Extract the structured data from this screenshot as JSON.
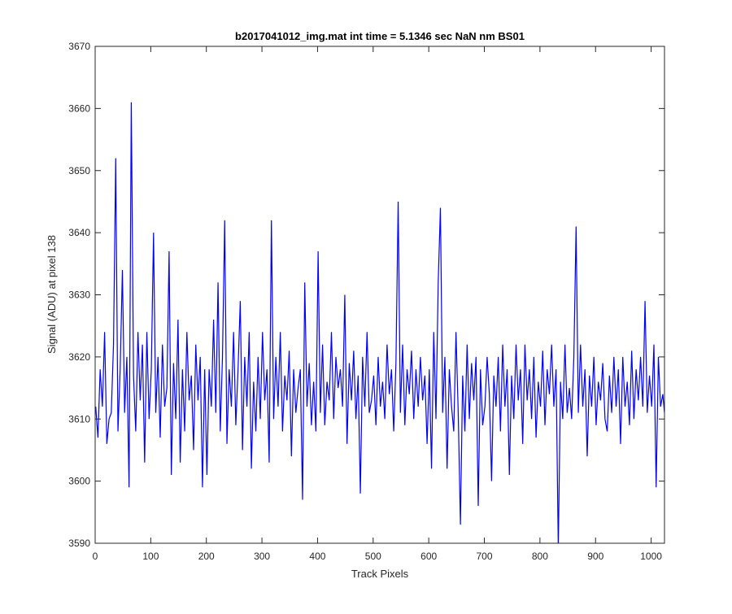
{
  "chart_data": {
    "type": "line",
    "title": "b2017041012_img.mat int time = 5.1346 sec  NaN nm BS01",
    "xlabel": "Track Pixels",
    "ylabel": "Signal (ADU) at pixel 138",
    "xlim": [
      0,
      1024
    ],
    "ylim": [
      3590,
      3670
    ],
    "xticks": [
      "0",
      "100",
      "200",
      "300",
      "400",
      "500",
      "600",
      "700",
      "800",
      "900",
      "1000"
    ],
    "yticks": [
      "3590",
      "3600",
      "3610",
      "3620",
      "3630",
      "3640",
      "3650",
      "3660",
      "3670"
    ],
    "grid": false,
    "line_color": "#0000ff",
    "series": [
      {
        "x_start": 1,
        "x_step": 4,
        "values": [
          3612,
          3607,
          3618,
          3612,
          3624,
          3606,
          3610,
          3611,
          3622,
          3652,
          3608,
          3618,
          3634,
          3611,
          3620,
          3599,
          3661,
          3617,
          3608,
          3624,
          3613,
          3622,
          3603,
          3624,
          3610,
          3618,
          3640,
          3611,
          3620,
          3607,
          3622,
          3612,
          3615,
          3637,
          3601,
          3619,
          3610,
          3626,
          3603,
          3618,
          3608,
          3624,
          3613,
          3617,
          3605,
          3622,
          3613,
          3620,
          3599,
          3618,
          3601,
          3618,
          3612,
          3626,
          3611,
          3632,
          3608,
          3620,
          3642,
          3606,
          3618,
          3612,
          3624,
          3609,
          3618,
          3629,
          3605,
          3620,
          3612,
          3624,
          3602,
          3616,
          3608,
          3620,
          3610,
          3624,
          3613,
          3618,
          3603,
          3642,
          3610,
          3620,
          3612,
          3624,
          3608,
          3617,
          3613,
          3621,
          3604,
          3618,
          3611,
          3615,
          3618,
          3597,
          3632,
          3612,
          3619,
          3609,
          3616,
          3608,
          3637,
          3611,
          3622,
          3609,
          3616,
          3613,
          3624,
          3610,
          3620,
          3615,
          3618,
          3612,
          3630,
          3606,
          3619,
          3613,
          3621,
          3610,
          3617,
          3598,
          3620,
          3612,
          3624,
          3611,
          3613,
          3617,
          3609,
          3620,
          3612,
          3616,
          3610,
          3622,
          3614,
          3618,
          3608,
          3619,
          3645,
          3611,
          3622,
          3609,
          3618,
          3614,
          3621,
          3610,
          3618,
          3612,
          3620,
          3613,
          3617,
          3606,
          3618,
          3602,
          3624,
          3610,
          3632,
          3644,
          3611,
          3620,
          3602,
          3618,
          3612,
          3608,
          3624,
          3611,
          3593,
          3617,
          3608,
          3622,
          3610,
          3619,
          3613,
          3620,
          3596,
          3618,
          3609,
          3612,
          3620,
          3614,
          3600,
          3617,
          3612,
          3620,
          3608,
          3622,
          3612,
          3618,
          3601,
          3617,
          3610,
          3622,
          3613,
          3618,
          3606,
          3622,
          3613,
          3618,
          3610,
          3620,
          3607,
          3616,
          3612,
          3621,
          3609,
          3618,
          3614,
          3622,
          3612,
          3618,
          3589,
          3616,
          3610,
          3622,
          3611,
          3615,
          3610,
          3620,
          3641,
          3611,
          3622,
          3612,
          3618,
          3604,
          3617,
          3612,
          3620,
          3609,
          3616,
          3613,
          3619,
          3610,
          3608,
          3617,
          3611,
          3620,
          3612,
          3618,
          3606,
          3620,
          3612,
          3616,
          3609,
          3621,
          3610,
          3618,
          3613,
          3620,
          3612,
          3629,
          3611,
          3617,
          3612,
          3622,
          3599,
          3620,
          3612,
          3614,
          3610
        ]
      }
    ]
  }
}
